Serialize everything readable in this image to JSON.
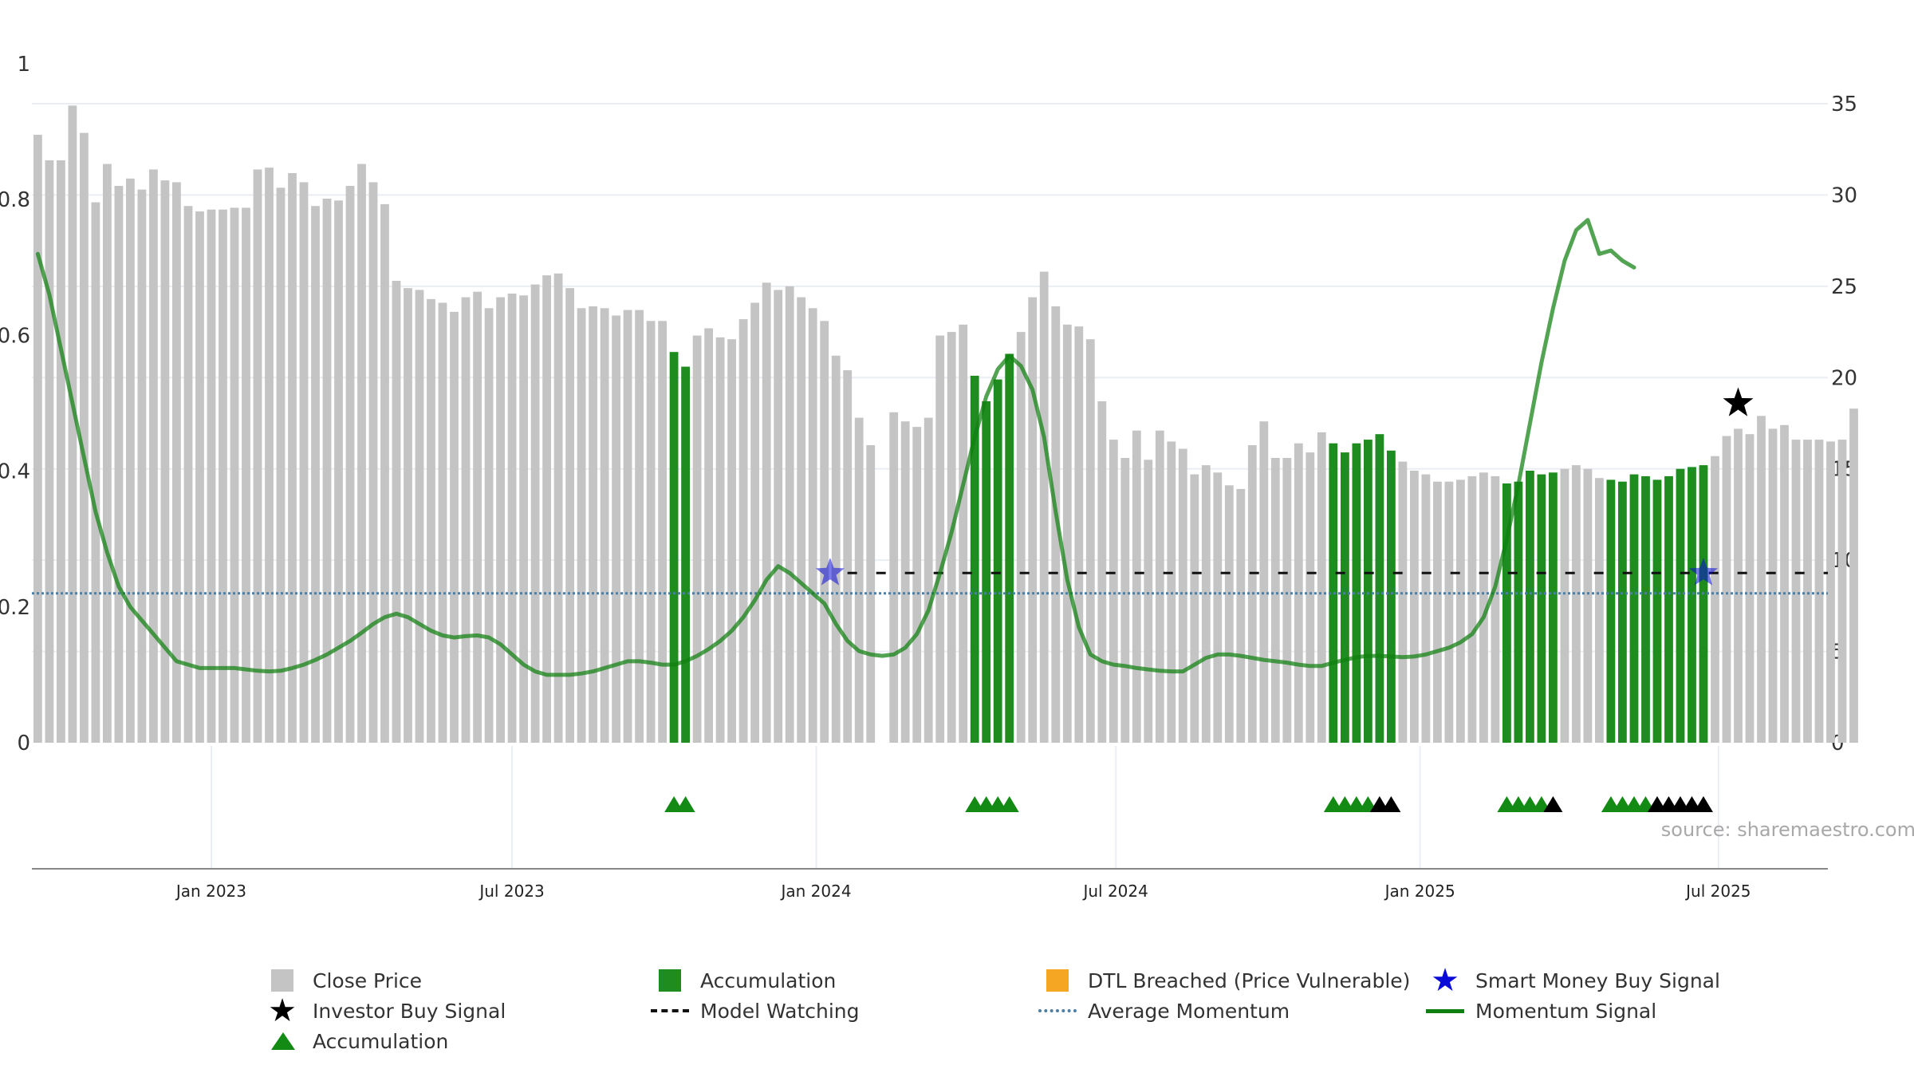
{
  "chart_data": {
    "type": "bar",
    "source_label": "source: sharemaestro.com",
    "left_axis": {
      "range": [
        0,
        1
      ],
      "ticks": [
        "0",
        "0.2",
        "0.4",
        "0.6",
        "0.8",
        "1"
      ]
    },
    "right_axis": {
      "range": [
        0,
        37.5
      ],
      "ticks": [
        "0",
        "5",
        "10",
        "15",
        "20",
        "25",
        "30",
        "35"
      ]
    },
    "x_axis": {
      "labels": [
        "Jan 2023",
        "Jul 2023",
        "Jan 2024",
        "Jul 2024",
        "Jan 2025",
        "Jul 2025"
      ],
      "label_positions_week_index": [
        15,
        41,
        67.3,
        93.2,
        119.5,
        145.3
      ]
    },
    "colors": {
      "close_price": "#c4c4c4",
      "accumulation_bar": "#1e8c1e",
      "accumulation_marker": "#138a13",
      "investor_marker": "#000000",
      "momentum": "#0f7f0f",
      "average_momentum": "#4a7fa6",
      "model_watching": "#111111",
      "smart_money": "#0b0bd9",
      "dtl": "#f5a623",
      "gridline": "#eaeef3"
    },
    "close_price": {
      "name": "Close Price",
      "values": [
        33.3,
        31.9,
        31.9,
        34.9,
        33.4,
        29.6,
        31.7,
        30.5,
        30.9,
        30.3,
        31.4,
        30.8,
        30.7,
        29.4,
        29.1,
        29.2,
        29.2,
        29.3,
        29.3,
        31.4,
        31.5,
        30.4,
        31.2,
        30.7,
        29.4,
        29.8,
        29.7,
        30.5,
        31.7,
        30.7,
        29.5,
        25.3,
        24.9,
        24.8,
        24.3,
        24.1,
        23.6,
        24.4,
        24.7,
        23.8,
        24.4,
        24.6,
        24.5,
        25.1,
        25.6,
        25.7,
        24.9,
        23.8,
        23.9,
        23.8,
        23.4,
        23.7,
        23.7,
        23.1,
        23.1,
        21.4,
        20.6,
        22.3,
        22.7,
        22.2,
        22.1,
        23.2,
        24.1,
        25.2,
        24.8,
        25.0,
        24.4,
        23.8,
        23.1,
        21.2,
        20.4,
        17.8,
        16.3,
        0,
        18.1,
        17.6,
        17.3,
        17.8,
        22.3,
        22.5,
        22.9,
        20.1,
        18.7,
        19.9,
        21.3,
        22.5,
        24.4,
        25.8,
        23.9,
        22.9,
        22.8,
        22.1,
        18.7,
        16.6,
        15.6,
        17.1,
        15.5,
        17.1,
        16.5,
        16.1,
        14.7,
        15.2,
        14.8,
        14.1,
        13.9,
        16.3,
        17.6,
        15.6,
        15.6,
        16.4,
        15.9,
        17.0,
        16.4,
        15.9,
        16.4,
        16.6,
        16.9,
        16.0,
        15.4,
        14.9,
        14.7,
        14.3,
        14.3,
        14.4,
        14.6,
        14.8,
        14.6,
        14.2,
        14.3,
        14.9,
        14.7,
        14.8,
        15.0,
        15.2,
        15.0,
        14.5,
        14.4,
        14.3,
        14.7,
        14.6,
        14.4,
        14.6,
        15.0,
        15.1,
        15.2,
        15.7,
        16.8,
        17.2,
        16.9,
        17.9,
        17.2,
        17.4,
        16.6,
        16.6,
        16.6,
        16.5,
        16.6,
        18.3
      ],
      "accumulation_week_indices": [
        55,
        56,
        81,
        82,
        83,
        84,
        112,
        113,
        114,
        115,
        116,
        117,
        127,
        128,
        129,
        130,
        131,
        136,
        137,
        138,
        139,
        140,
        141,
        142,
        143,
        144
      ]
    },
    "momentum_signal": {
      "name": "Momentum Signal",
      "values": [
        0.72,
        0.66,
        0.58,
        0.5,
        0.42,
        0.34,
        0.28,
        0.23,
        0.2,
        0.18,
        0.16,
        0.14,
        0.12,
        0.115,
        0.11,
        0.11,
        0.11,
        0.11,
        0.108,
        0.106,
        0.105,
        0.106,
        0.11,
        0.115,
        0.122,
        0.13,
        0.14,
        0.15,
        0.162,
        0.175,
        0.185,
        0.19,
        0.185,
        0.175,
        0.165,
        0.158,
        0.155,
        0.157,
        0.158,
        0.155,
        0.145,
        0.13,
        0.115,
        0.105,
        0.1,
        0.1,
        0.1,
        0.102,
        0.105,
        0.11,
        0.115,
        0.12,
        0.12,
        0.118,
        0.115,
        0.115,
        0.12,
        0.128,
        0.138,
        0.15,
        0.165,
        0.185,
        0.21,
        0.24,
        0.26,
        0.25,
        0.235,
        0.22,
        0.205,
        0.175,
        0.15,
        0.135,
        0.13,
        0.128,
        0.13,
        0.14,
        0.16,
        0.195,
        0.25,
        0.31,
        0.38,
        0.45,
        0.51,
        0.55,
        0.57,
        0.555,
        0.52,
        0.45,
        0.34,
        0.24,
        0.17,
        0.13,
        0.12,
        0.115,
        0.113,
        0.11,
        0.108,
        0.106,
        0.105,
        0.105,
        0.115,
        0.125,
        0.13,
        0.13,
        0.128,
        0.125,
        0.122,
        0.12,
        0.118,
        0.115,
        0.113,
        0.113,
        0.118,
        0.122,
        0.126,
        0.128,
        0.128,
        0.127,
        0.126,
        0.127,
        0.13,
        0.135,
        0.14,
        0.148,
        0.16,
        0.185,
        0.23,
        0.3,
        0.38,
        0.47,
        0.56,
        0.64,
        0.71,
        0.755,
        0.77,
        0.72,
        0.725,
        0.71,
        0.7
      ]
    },
    "average_momentum": {
      "name": "Average Momentum",
      "value": 0.22
    },
    "model_watching": {
      "name": "Model Watching",
      "value": 0.25,
      "from_week": 70
    },
    "smart_money_signals": {
      "name": "Smart Money Buy Signal",
      "weeks": [
        68.5,
        144
      ],
      "value": 0.25
    },
    "investor_buy_signals": {
      "name": "Investor Buy Signal",
      "weeks": [
        147
      ],
      "value": 0.5
    },
    "accumulation_markers": {
      "name": "Accumulation",
      "green_weeks": [
        55,
        56,
        81,
        82,
        83,
        84,
        112,
        113,
        114,
        115,
        127,
        128,
        129,
        130,
        136,
        137,
        138,
        139
      ],
      "black_weeks": [
        116,
        117,
        131,
        140,
        141,
        142,
        143,
        144
      ]
    },
    "legend": [
      {
        "label": "Close Price",
        "kind": "square",
        "color_key": "close_price"
      },
      {
        "label": "Accumulation",
        "kind": "square",
        "color_key": "accumulation_bar"
      },
      {
        "label": "DTL Breached (Price Vulnerable)",
        "kind": "square",
        "color_key": "dtl"
      },
      {
        "label": "Smart Money Buy Signal",
        "kind": "star",
        "color_key": "smart_money"
      },
      {
        "label": "Investor Buy Signal",
        "kind": "star",
        "color_key": "investor_marker"
      },
      {
        "label": "Model Watching",
        "kind": "dash",
        "color_key": "model_watching"
      },
      {
        "label": "Average Momentum",
        "kind": "dot",
        "color_key": "average_momentum"
      },
      {
        "label": "Momentum Signal",
        "kind": "line",
        "color_key": "momentum"
      },
      {
        "label": "Accumulation",
        "kind": "triangle",
        "color_key": "accumulation_marker"
      }
    ]
  }
}
